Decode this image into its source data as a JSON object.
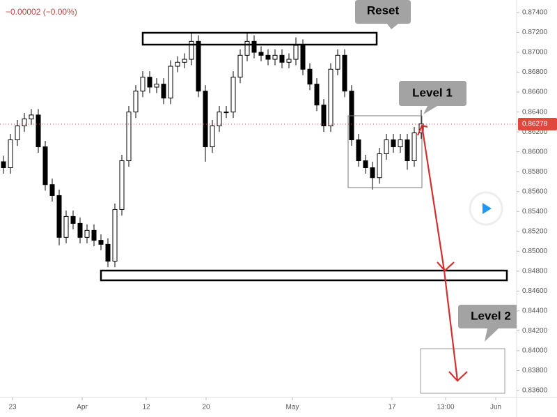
{
  "chart_data": {
    "type": "candlestick",
    "change_label": "−0.00002 (−0.00%)",
    "x": [
      0,
      1,
      2,
      3,
      4,
      5,
      6,
      7,
      8,
      9,
      10,
      11,
      12,
      13,
      14,
      15,
      16,
      17,
      18,
      19,
      20,
      21,
      22,
      23,
      24,
      25,
      26,
      27,
      28,
      29,
      30,
      31,
      32,
      33,
      34,
      35,
      36,
      37,
      38,
      39,
      40,
      41,
      42,
      43,
      44,
      45,
      46,
      47,
      48,
      49,
      50,
      51,
      52,
      53,
      54,
      55,
      56,
      57,
      58,
      59,
      60
    ],
    "open": [
      0.859,
      0.8584,
      0.8612,
      0.8626,
      0.8633,
      0.8637,
      0.8605,
      0.8567,
      0.8556,
      0.8514,
      0.8535,
      0.8528,
      0.8514,
      0.8521,
      0.8511,
      0.8507,
      0.849,
      0.8542,
      0.8591,
      0.864,
      0.8661,
      0.8675,
      0.8665,
      0.8668,
      0.8654,
      0.8686,
      0.869,
      0.8693,
      0.8711,
      0.8661,
      0.8605,
      0.8626,
      0.864,
      0.864,
      0.8675,
      0.8697,
      0.8711,
      0.87,
      0.8697,
      0.8693,
      0.8697,
      0.869,
      0.8693,
      0.8707,
      0.8683,
      0.8668,
      0.8647,
      0.8626,
      0.8683,
      0.8697,
      0.8661,
      0.8612,
      0.8591,
      0.8584,
      0.8574,
      0.8598,
      0.8612,
      0.8605,
      0.8612,
      0.8591,
      0.8619
    ],
    "high": [
      0.8596,
      0.8618,
      0.8632,
      0.8639,
      0.8643,
      0.8643,
      0.8611,
      0.8573,
      0.8562,
      0.8541,
      0.8541,
      0.8534,
      0.8527,
      0.8527,
      0.8517,
      0.8513,
      0.8548,
      0.8597,
      0.8646,
      0.8667,
      0.8681,
      0.8681,
      0.8674,
      0.8674,
      0.8692,
      0.8696,
      0.8699,
      0.8719,
      0.8717,
      0.8667,
      0.8632,
      0.8646,
      0.8646,
      0.8681,
      0.8703,
      0.8719,
      0.8717,
      0.8706,
      0.8703,
      0.8703,
      0.8703,
      0.8699,
      0.8715,
      0.8713,
      0.8689,
      0.8674,
      0.8653,
      0.8689,
      0.8703,
      0.8703,
      0.8667,
      0.8618,
      0.8597,
      0.859,
      0.8604,
      0.8618,
      0.8618,
      0.8618,
      0.8618,
      0.8625,
      0.8642
    ],
    "low": [
      0.8578,
      0.8578,
      0.8606,
      0.862,
      0.8627,
      0.8599,
      0.8561,
      0.855,
      0.8506,
      0.8508,
      0.8522,
      0.8508,
      0.8508,
      0.8505,
      0.8501,
      0.8484,
      0.8484,
      0.8536,
      0.8585,
      0.8634,
      0.8655,
      0.8659,
      0.8659,
      0.8648,
      0.8648,
      0.868,
      0.8684,
      0.8687,
      0.8655,
      0.859,
      0.8599,
      0.862,
      0.8634,
      0.8634,
      0.8669,
      0.8691,
      0.8694,
      0.8691,
      0.8687,
      0.8687,
      0.8684,
      0.8684,
      0.8687,
      0.8677,
      0.8662,
      0.8641,
      0.862,
      0.862,
      0.8677,
      0.8655,
      0.8606,
      0.8585,
      0.8578,
      0.8562,
      0.8568,
      0.8592,
      0.8599,
      0.8599,
      0.8582,
      0.8585,
      0.8613
    ],
    "close": [
      0.8584,
      0.8612,
      0.8626,
      0.8633,
      0.8637,
      0.8605,
      0.8567,
      0.8556,
      0.8514,
      0.8535,
      0.8528,
      0.8514,
      0.8521,
      0.8511,
      0.8507,
      0.849,
      0.8542,
      0.8591,
      0.864,
      0.8661,
      0.8675,
      0.8665,
      0.8668,
      0.8654,
      0.8686,
      0.869,
      0.8693,
      0.8711,
      0.8661,
      0.8605,
      0.8626,
      0.864,
      0.864,
      0.8675,
      0.8697,
      0.8711,
      0.87,
      0.8697,
      0.8693,
      0.8697,
      0.869,
      0.8693,
      0.8707,
      0.8683,
      0.8668,
      0.8647,
      0.8626,
      0.8683,
      0.8697,
      0.8661,
      0.8612,
      0.8591,
      0.8584,
      0.8574,
      0.8598,
      0.8612,
      0.8605,
      0.8612,
      0.8591,
      0.8619,
      0.8628
    ],
    "up_color": "#ffffff",
    "down_color": "#000000",
    "wick_color": "#000000",
    "xlim": [
      -0.5,
      73.7
    ],
    "xticks": [
      {
        "value": 1.3,
        "label": "23"
      },
      {
        "value": 11.3,
        "label": "Apr"
      },
      {
        "value": 20.5,
        "label": "12"
      },
      {
        "value": 29.1,
        "label": "20"
      },
      {
        "value": 41.5,
        "label": "May"
      },
      {
        "value": 55.8,
        "label": "17"
      },
      {
        "value": 63.5,
        "label": "13:00"
      },
      {
        "value": 70.7,
        "label": "Jun"
      }
    ],
    "ylim": [
      0.8353,
      0.87526
    ],
    "yticks": [
      {
        "value": 0.874,
        "label": "0.87400"
      },
      {
        "value": 0.872,
        "label": "0.87200"
      },
      {
        "value": 0.87,
        "label": "0.87000"
      },
      {
        "value": 0.868,
        "label": "0.86800"
      },
      {
        "value": 0.866,
        "label": "0.86600"
      },
      {
        "value": 0.864,
        "label": "0.86400"
      },
      {
        "value": 0.862,
        "label": "0.86200"
      },
      {
        "value": 0.86,
        "label": "0.86000"
      },
      {
        "value": 0.858,
        "label": "0.85800"
      },
      {
        "value": 0.856,
        "label": "0.85600"
      },
      {
        "value": 0.854,
        "label": "0.85400"
      },
      {
        "value": 0.852,
        "label": "0.85200"
      },
      {
        "value": 0.85,
        "label": "0.85000"
      },
      {
        "value": 0.848,
        "label": "0.84800"
      },
      {
        "value": 0.846,
        "label": "0.84600"
      },
      {
        "value": 0.844,
        "label": "0.84400"
      },
      {
        "value": 0.842,
        "label": "0.84200"
      },
      {
        "value": 0.84,
        "label": "0.84000"
      },
      {
        "value": 0.838,
        "label": "0.83800"
      },
      {
        "value": 0.836,
        "label": "0.83600"
      }
    ],
    "last_price": {
      "value": 0.86278,
      "label": "0.86278"
    },
    "last_price_color": "#e0483e",
    "annotations": [
      "Reset",
      "Level 1",
      "Level 2"
    ]
  }
}
